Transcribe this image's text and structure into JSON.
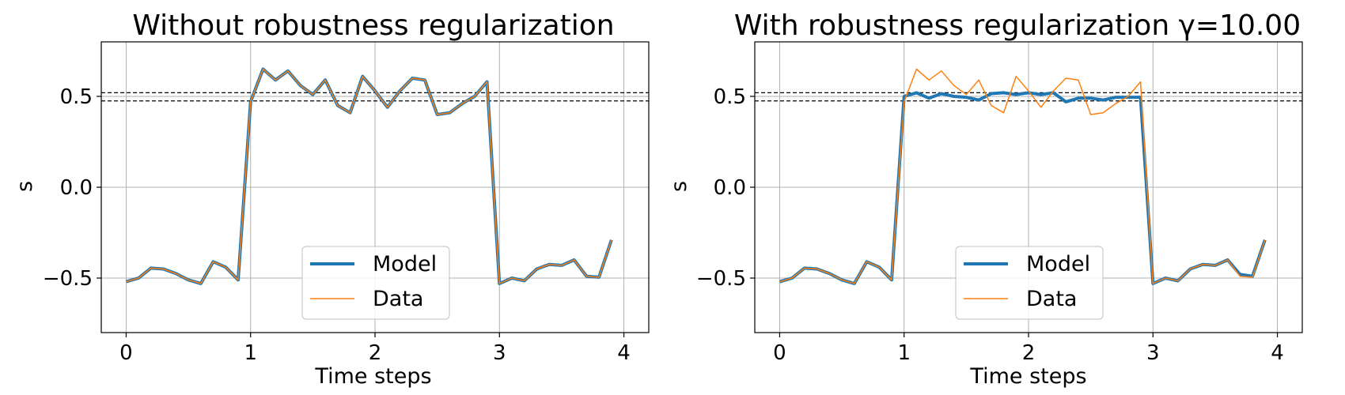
{
  "chart_data": [
    {
      "type": "line",
      "title": "Without robustness regularization",
      "xlabel": "Time steps",
      "ylabel": "s",
      "xlim": [
        -0.2,
        4.2
      ],
      "ylim": [
        -0.8,
        0.8
      ],
      "xticks": [
        0,
        1,
        2,
        3,
        4
      ],
      "xtick_labels": [
        "0",
        "1",
        "2",
        "3",
        "4"
      ],
      "yticks": [
        -0.5,
        0.0,
        0.5
      ],
      "ytick_labels": [
        "−0.5",
        "0.0",
        "0.5"
      ],
      "grid": true,
      "hlines": [
        0.52,
        0.475
      ],
      "legend": "bottom-center",
      "series": [
        {
          "name": "Model",
          "color": "#1f77b4",
          "x": [
            0,
            0.1,
            0.2,
            0.3,
            0.4,
            0.5,
            0.6,
            0.7,
            0.8,
            0.9,
            1.0,
            1.1,
            1.2,
            1.3,
            1.4,
            1.5,
            1.6,
            1.7,
            1.8,
            1.9,
            2.0,
            2.1,
            2.2,
            2.3,
            2.4,
            2.5,
            2.6,
            2.7,
            2.8,
            2.9,
            3.0,
            3.1,
            3.2,
            3.3,
            3.4,
            3.5,
            3.6,
            3.7,
            3.8,
            3.9
          ],
          "y": [
            -0.52,
            -0.5,
            -0.445,
            -0.45,
            -0.475,
            -0.51,
            -0.53,
            -0.41,
            -0.44,
            -0.51,
            0.47,
            0.65,
            0.59,
            0.64,
            0.56,
            0.51,
            0.59,
            0.45,
            0.41,
            0.61,
            0.53,
            0.44,
            0.53,
            0.6,
            0.59,
            0.4,
            0.41,
            0.46,
            0.5,
            0.58,
            -0.53,
            -0.5,
            -0.515,
            -0.45,
            -0.425,
            -0.43,
            -0.4,
            -0.49,
            -0.495,
            -0.29
          ]
        },
        {
          "name": "Data",
          "color": "#ff7f0e",
          "x": [
            0,
            0.1,
            0.2,
            0.3,
            0.4,
            0.5,
            0.6,
            0.7,
            0.8,
            0.9,
            1.0,
            1.1,
            1.2,
            1.3,
            1.4,
            1.5,
            1.6,
            1.7,
            1.8,
            1.9,
            2.0,
            2.1,
            2.2,
            2.3,
            2.4,
            2.5,
            2.6,
            2.7,
            2.8,
            2.9,
            3.0,
            3.1,
            3.2,
            3.3,
            3.4,
            3.5,
            3.6,
            3.7,
            3.8,
            3.9
          ],
          "y": [
            -0.52,
            -0.5,
            -0.445,
            -0.45,
            -0.475,
            -0.51,
            -0.53,
            -0.41,
            -0.44,
            -0.51,
            0.47,
            0.65,
            0.59,
            0.64,
            0.56,
            0.51,
            0.59,
            0.45,
            0.41,
            0.61,
            0.53,
            0.44,
            0.53,
            0.6,
            0.59,
            0.4,
            0.41,
            0.46,
            0.5,
            0.58,
            -0.53,
            -0.5,
            -0.515,
            -0.45,
            -0.425,
            -0.43,
            -0.4,
            -0.49,
            -0.495,
            -0.29
          ]
        }
      ]
    },
    {
      "type": "line",
      "title": "With robustness regularization γ=10.00",
      "xlabel": "Time steps",
      "ylabel": "s",
      "xlim": [
        -0.2,
        4.2
      ],
      "ylim": [
        -0.8,
        0.8
      ],
      "xticks": [
        0,
        1,
        2,
        3,
        4
      ],
      "xtick_labels": [
        "0",
        "1",
        "2",
        "3",
        "4"
      ],
      "yticks": [
        -0.5,
        0.0,
        0.5
      ],
      "ytick_labels": [
        "−0.5",
        "0.0",
        "0.5"
      ],
      "grid": true,
      "hlines": [
        0.52,
        0.475
      ],
      "legend": "bottom-center",
      "series": [
        {
          "name": "Model",
          "color": "#1f77b4",
          "x": [
            0,
            0.1,
            0.2,
            0.3,
            0.4,
            0.5,
            0.6,
            0.7,
            0.8,
            0.9,
            1.0,
            1.1,
            1.2,
            1.3,
            1.4,
            1.5,
            1.6,
            1.7,
            1.8,
            1.9,
            2.0,
            2.1,
            2.2,
            2.3,
            2.4,
            2.5,
            2.6,
            2.7,
            2.8,
            2.9,
            3.0,
            3.1,
            3.2,
            3.3,
            3.4,
            3.5,
            3.6,
            3.7,
            3.8,
            3.9
          ],
          "y": [
            -0.52,
            -0.5,
            -0.445,
            -0.45,
            -0.475,
            -0.51,
            -0.53,
            -0.41,
            -0.44,
            -0.51,
            0.5,
            0.52,
            0.49,
            0.515,
            0.5,
            0.495,
            0.48,
            0.515,
            0.52,
            0.51,
            0.52,
            0.51,
            0.52,
            0.47,
            0.49,
            0.49,
            0.48,
            0.495,
            0.495,
            0.495,
            -0.53,
            -0.5,
            -0.515,
            -0.45,
            -0.425,
            -0.43,
            -0.4,
            -0.48,
            -0.49,
            -0.29
          ]
        },
        {
          "name": "Data",
          "color": "#ff7f0e",
          "x": [
            0,
            0.1,
            0.2,
            0.3,
            0.4,
            0.5,
            0.6,
            0.7,
            0.8,
            0.9,
            1.0,
            1.1,
            1.2,
            1.3,
            1.4,
            1.5,
            1.6,
            1.7,
            1.8,
            1.9,
            2.0,
            2.1,
            2.2,
            2.3,
            2.4,
            2.5,
            2.6,
            2.7,
            2.8,
            2.9,
            3.0,
            3.1,
            3.2,
            3.3,
            3.4,
            3.5,
            3.6,
            3.7,
            3.8,
            3.9
          ],
          "y": [
            -0.52,
            -0.5,
            -0.445,
            -0.45,
            -0.475,
            -0.51,
            -0.53,
            -0.41,
            -0.44,
            -0.51,
            0.47,
            0.65,
            0.59,
            0.64,
            0.56,
            0.51,
            0.59,
            0.45,
            0.41,
            0.61,
            0.53,
            0.44,
            0.53,
            0.6,
            0.59,
            0.4,
            0.41,
            0.46,
            0.5,
            0.58,
            -0.53,
            -0.5,
            -0.515,
            -0.45,
            -0.425,
            -0.43,
            -0.4,
            -0.49,
            -0.495,
            -0.29
          ]
        }
      ]
    }
  ]
}
